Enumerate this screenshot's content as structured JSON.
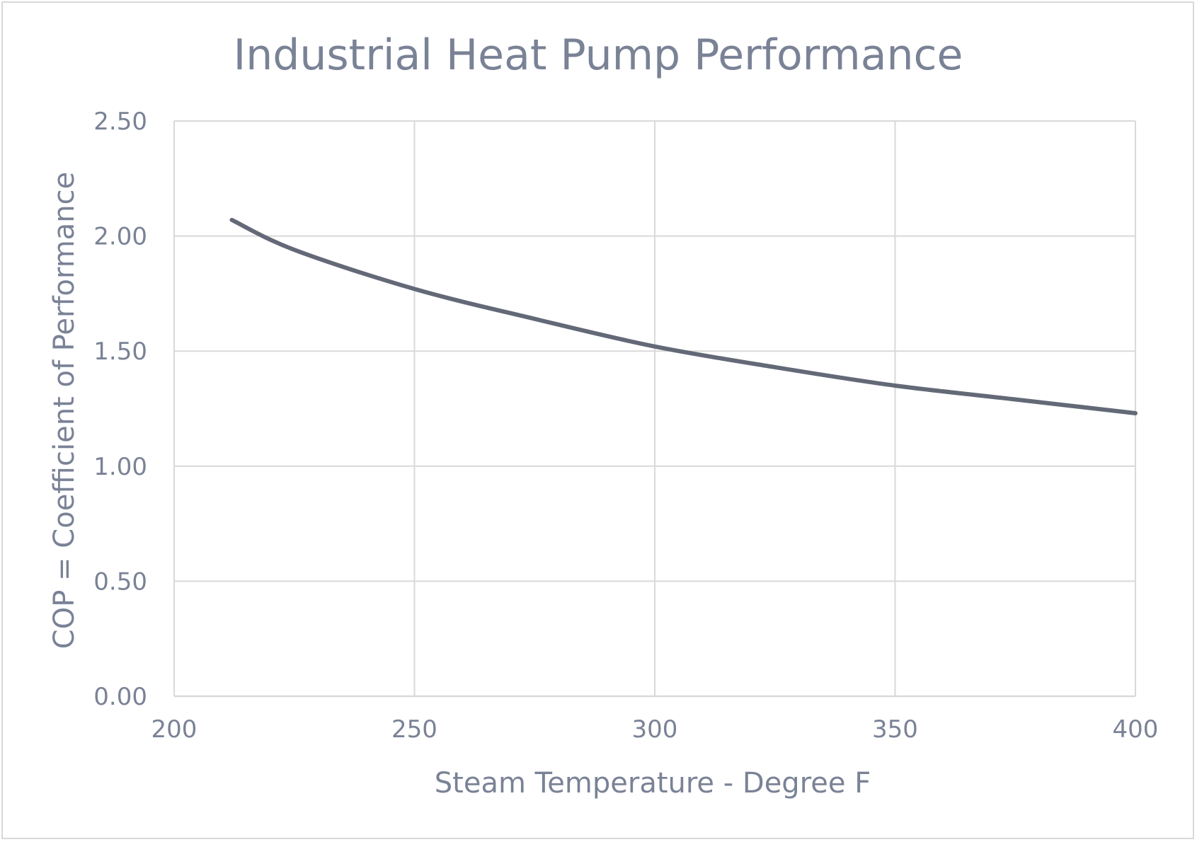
{
  "chart_data": {
    "type": "line",
    "title": "Industrial Heat Pump Performance",
    "xlabel": "Steam Temperature - Degree F",
    "ylabel": "COP = Coefficient of Performance",
    "xlim": [
      200,
      400
    ],
    "ylim": [
      0,
      2.5
    ],
    "x_ticks": [
      "200",
      "250",
      "300",
      "350",
      "400"
    ],
    "y_ticks": [
      "0.00",
      "0.50",
      "1.00",
      "1.50",
      "2.00",
      "2.50"
    ],
    "grid": true,
    "legend": "none",
    "colors": {
      "series": "#636977",
      "text": "#7a8296",
      "grid": "#d9d9d9"
    },
    "series": [
      {
        "x": [
          212,
          225,
          250,
          275,
          300,
          325,
          350,
          375,
          400
        ],
        "y": [
          2.07,
          1.94,
          1.77,
          1.64,
          1.52,
          1.43,
          1.35,
          1.29,
          1.23
        ]
      }
    ]
  }
}
